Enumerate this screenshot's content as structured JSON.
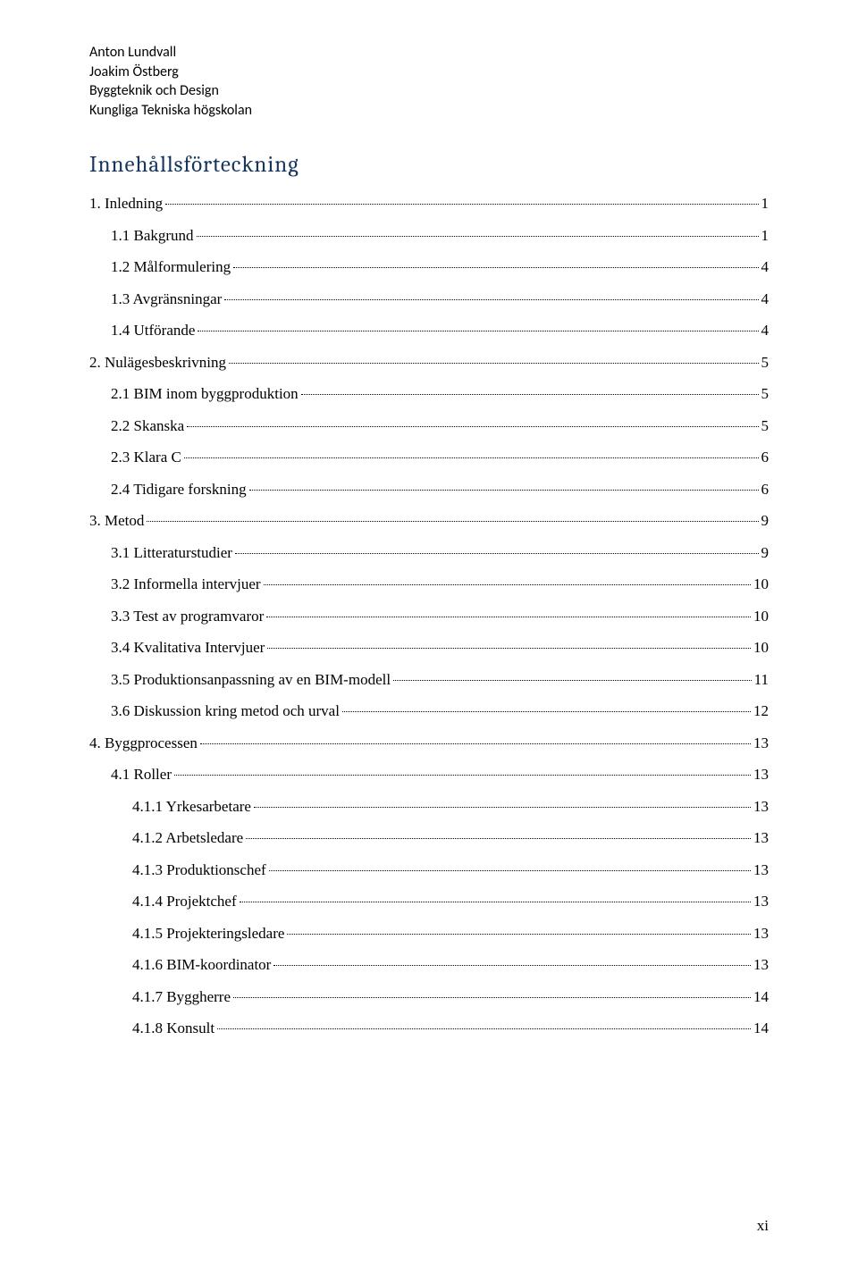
{
  "header": {
    "line1": "Anton Lundvall",
    "line2": "Joakim Östberg",
    "line3": "Byggteknik och Design",
    "line4": "Kungliga Tekniska högskolan"
  },
  "toc": {
    "title": "Innehållsförteckning",
    "title_color": "#17365d",
    "title_fontsize": 25,
    "body_fontsize": 17,
    "entries": [
      {
        "level": 0,
        "label": "1. Inledning",
        "page": "1"
      },
      {
        "level": 1,
        "label": "1.1 Bakgrund",
        "page": "1"
      },
      {
        "level": 1,
        "label": "1.2 Målformulering",
        "page": "4"
      },
      {
        "level": 1,
        "label": "1.3 Avgränsningar",
        "page": "4"
      },
      {
        "level": 1,
        "label": "1.4 Utförande",
        "page": "4"
      },
      {
        "level": 0,
        "label": "2. Nulägesbeskrivning",
        "page": "5"
      },
      {
        "level": 1,
        "label": "2.1 BIM inom byggproduktion",
        "page": "5"
      },
      {
        "level": 1,
        "label": "2.2 Skanska",
        "page": "5"
      },
      {
        "level": 1,
        "label": "2.3 Klara C",
        "page": "6"
      },
      {
        "level": 1,
        "label": "2.4 Tidigare forskning",
        "page": "6"
      },
      {
        "level": 0,
        "label": "3. Metod",
        "page": "9"
      },
      {
        "level": 1,
        "label": "3.1 Litteraturstudier",
        "page": "9"
      },
      {
        "level": 1,
        "label": "3.2 Informella intervjuer",
        "page": "10"
      },
      {
        "level": 1,
        "label": "3.3 Test av programvaror",
        "page": "10"
      },
      {
        "level": 1,
        "label": "3.4 Kvalitativa Intervjuer",
        "page": "10"
      },
      {
        "level": 1,
        "label": "3.5 Produktionsanpassning av en BIM-modell",
        "page": "11"
      },
      {
        "level": 1,
        "label": "3.6 Diskussion kring metod och urval",
        "page": "12"
      },
      {
        "level": 0,
        "label": "4. Byggprocessen",
        "page": "13"
      },
      {
        "level": 1,
        "label": "4.1 Roller",
        "page": "13"
      },
      {
        "level": 2,
        "label": "4.1.1 Yrkesarbetare",
        "page": "13"
      },
      {
        "level": 2,
        "label": "4.1.2 Arbetsledare",
        "page": "13"
      },
      {
        "level": 2,
        "label": "4.1.3 Produktionschef",
        "page": "13"
      },
      {
        "level": 2,
        "label": "4.1.4 Projektchef",
        "page": "13"
      },
      {
        "level": 2,
        "label": "4.1.5 Projekteringsledare",
        "page": "13"
      },
      {
        "level": 2,
        "label": "4.1.6 BIM-koordinator",
        "page": "13"
      },
      {
        "level": 2,
        "label": "4.1.7 Byggherre",
        "page": "14"
      },
      {
        "level": 2,
        "label": "4.1.8 Konsult",
        "page": "14"
      }
    ]
  },
  "footer": {
    "page_number": "xi"
  },
  "colors": {
    "background": "#ffffff",
    "text": "#000000",
    "title": "#17365d"
  }
}
